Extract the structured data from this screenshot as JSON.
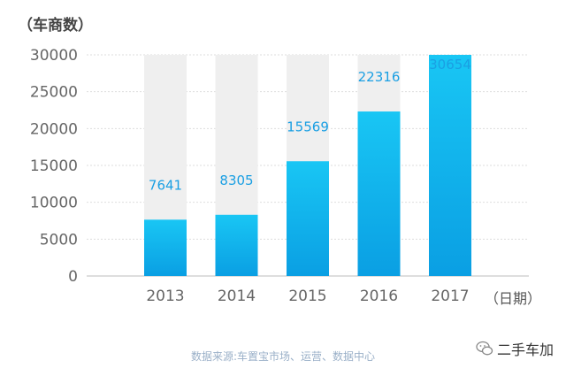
{
  "chart_data": {
    "type": "bar",
    "ylabel": "（车商数）",
    "xunit": "（日期）",
    "categories": [
      "2013",
      "2014",
      "2015",
      "2016",
      "2017"
    ],
    "values": [
      7641,
      8305,
      15569,
      22316,
      30654
    ],
    "ylim": [
      0,
      30000
    ],
    "yticks": [
      0,
      5000,
      10000,
      15000,
      20000,
      25000,
      30000
    ],
    "grid": true,
    "background_column": true,
    "colors": {
      "bar_top": "#19c6f4",
      "bar_bottom": "#0a9fe3",
      "bg_column": "#efefef",
      "value_label": "#1a9fe3"
    }
  },
  "footer": {
    "source": "数据来源:车置宝市场、运营、数据中心",
    "brand": "二手车加"
  },
  "icons": {
    "brand": "wechat-icon"
  }
}
